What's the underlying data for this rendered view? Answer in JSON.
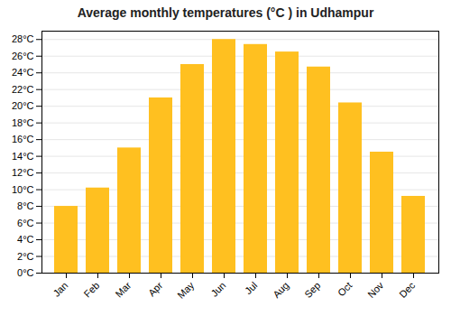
{
  "chart_data": {
    "type": "bar",
    "title": "Average monthly temperatures (°C ) in Udhampur",
    "categories": [
      "Jan",
      "Feb",
      "Mar",
      "Apr",
      "May",
      "Jun",
      "Jul",
      "Aug",
      "Sep",
      "Oct",
      "Nov",
      "Dec"
    ],
    "values": [
      8,
      10.2,
      15,
      21,
      25,
      28,
      27.4,
      26.5,
      24.7,
      20.4,
      14.5,
      9.2
    ],
    "color": "#FFC020",
    "ylim": [
      0,
      29
    ],
    "yticks": [
      {
        "value": 0,
        "label": "0°C"
      },
      {
        "value": 2,
        "label": "2°C"
      },
      {
        "value": 4,
        "label": "4°C"
      },
      {
        "value": 6,
        "label": "6°C"
      },
      {
        "value": 8,
        "label": "8°C"
      },
      {
        "value": 10,
        "label": "10°C"
      },
      {
        "value": 12,
        "label": "12°C"
      },
      {
        "value": 14,
        "label": "14°C"
      },
      {
        "value": 16,
        "label": "16°C"
      },
      {
        "value": 18,
        "label": "18°C"
      },
      {
        "value": 20,
        "label": "20°C"
      },
      {
        "value": 22,
        "label": "22°C"
      },
      {
        "value": 24,
        "label": "24°C"
      },
      {
        "value": 26,
        "label": "26°C"
      },
      {
        "value": 28,
        "label": "28°C"
      }
    ],
    "grid": true
  }
}
